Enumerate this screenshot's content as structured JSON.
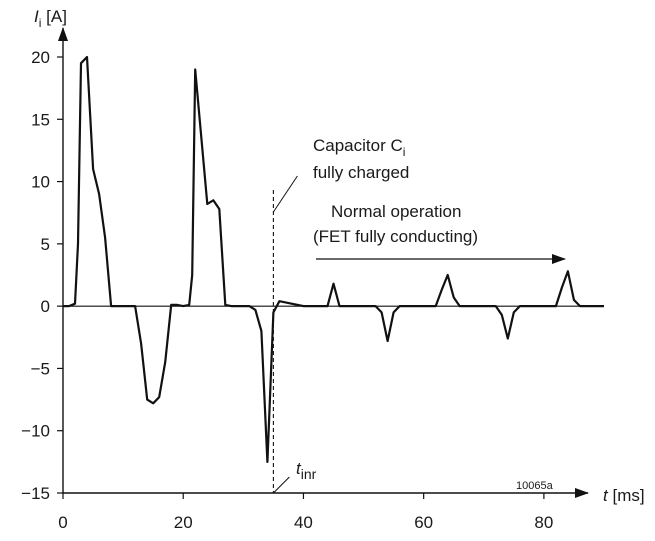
{
  "chart_data": {
    "type": "line",
    "ylabel_main": "I",
    "ylabel_sub": "i",
    "ylabel_unit": "[A]",
    "xlabel_main": "t",
    "xlabel_unit": "[ms]",
    "xlim": [
      0,
      90
    ],
    "ylim": [
      -15,
      21
    ],
    "x_ticks": [
      0,
      20,
      40,
      60,
      80
    ],
    "y_ticks": [
      20,
      15,
      10,
      5,
      0,
      -5,
      -10,
      -15
    ],
    "series": [
      {
        "color": "#111111",
        "x": [
          0,
          1,
          2,
          2.5,
          3,
          4,
          5,
          6,
          7,
          8,
          9,
          12,
          13,
          14,
          15,
          16,
          17,
          18,
          19,
          20,
          21,
          21.5,
          22,
          24,
          25,
          26,
          27,
          28,
          31,
          32,
          33,
          34,
          35,
          36,
          40,
          44,
          45,
          46,
          52,
          53,
          54,
          55,
          56,
          62,
          63,
          64,
          65,
          66,
          72,
          73,
          74,
          75,
          76,
          82,
          83,
          84,
          85,
          86,
          90
        ],
        "y": [
          0,
          0,
          0.2,
          5,
          19.5,
          20,
          11,
          9,
          5.5,
          0,
          0,
          0,
          -3,
          -7.5,
          -7.8,
          -7.3,
          -4.5,
          0.1,
          0.1,
          0,
          0.1,
          2.5,
          19,
          8.2,
          8.5,
          7.8,
          0.1,
          0,
          0,
          -0.3,
          -2,
          -12.5,
          -0.5,
          0.4,
          0,
          0,
          1.8,
          0,
          0,
          -0.5,
          -2.8,
          -0.5,
          0,
          0,
          1.3,
          2.5,
          0.7,
          0,
          0,
          -0.7,
          -2.6,
          -0.5,
          0,
          0,
          1.5,
          2.8,
          0.5,
          0,
          0
        ]
      }
    ],
    "annotations": {
      "capacitor_line1": "Capacitor C",
      "capacitor_sub": "i",
      "capacitor_line2": "fully charged",
      "normal_line1": "Normal operation",
      "normal_line2": "(FET fully conducting)",
      "tinr_main": "t",
      "tinr_sub": "inr",
      "figure_code": "10065a",
      "tinr_x": 35
    }
  }
}
